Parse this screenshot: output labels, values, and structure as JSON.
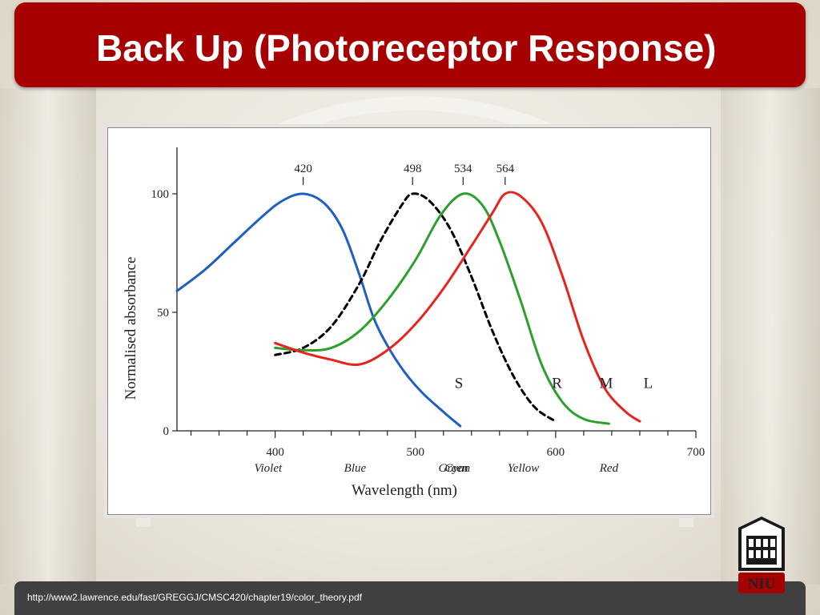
{
  "slide": {
    "title": "Back Up (Photoreceptor Response)",
    "footer_url": "http://www2.lawrence.edu/fast/GREGGJ/CMSC420/chapter19/color_theory.pdf",
    "logo_text": "NIU",
    "colors": {
      "title_bar": "#a60000",
      "footer_bar": "#404040"
    }
  },
  "chart_data": {
    "type": "line",
    "title": "",
    "xlabel": "Wavelength (nm)",
    "ylabel": "Normalised absorbance",
    "xlim": [
      330,
      700
    ],
    "ylim": [
      0,
      100
    ],
    "x_ticks": [
      400,
      500,
      600,
      700
    ],
    "y_ticks": [
      0,
      50,
      100
    ],
    "color_bands": [
      {
        "label": "Violet",
        "x": 395
      },
      {
        "label": "Blue",
        "x": 457
      },
      {
        "label": "Cyan",
        "x": 530
      },
      {
        "label": "Green",
        "x": 527
      },
      {
        "label": "Yellow",
        "x": 577
      },
      {
        "label": "Red",
        "x": 638
      }
    ],
    "peak_labels": [
      420,
      498,
      534,
      564
    ],
    "series": [
      {
        "name": "S",
        "color": "#1f5fbf",
        "dashed": false,
        "points": [
          [
            330,
            59
          ],
          [
            350,
            68
          ],
          [
            370,
            79
          ],
          [
            390,
            90
          ],
          [
            405,
            97
          ],
          [
            420,
            100
          ],
          [
            435,
            96
          ],
          [
            448,
            85
          ],
          [
            460,
            66
          ],
          [
            470,
            48
          ],
          [
            480,
            36
          ],
          [
            492,
            25
          ],
          [
            505,
            16
          ],
          [
            520,
            8
          ],
          [
            532,
            2
          ]
        ]
      },
      {
        "name": "R",
        "color": "#000000",
        "dashed": true,
        "points": [
          [
            400,
            32
          ],
          [
            420,
            35
          ],
          [
            440,
            44
          ],
          [
            460,
            62
          ],
          [
            475,
            80
          ],
          [
            490,
            95
          ],
          [
            498,
            100
          ],
          [
            510,
            97
          ],
          [
            525,
            85
          ],
          [
            540,
            65
          ],
          [
            555,
            42
          ],
          [
            570,
            23
          ],
          [
            585,
            10
          ],
          [
            600,
            4
          ]
        ]
      },
      {
        "name": "M",
        "color": "#2ca02c",
        "dashed": false,
        "points": [
          [
            400,
            35
          ],
          [
            420,
            34
          ],
          [
            440,
            35
          ],
          [
            460,
            42
          ],
          [
            480,
            55
          ],
          [
            500,
            72
          ],
          [
            518,
            91
          ],
          [
            534,
            100
          ],
          [
            548,
            95
          ],
          [
            560,
            80
          ],
          [
            575,
            55
          ],
          [
            590,
            28
          ],
          [
            605,
            12
          ],
          [
            620,
            5
          ],
          [
            638,
            3
          ]
        ]
      },
      {
        "name": "L",
        "color": "#e8231c",
        "dashed": false,
        "points": [
          [
            400,
            37
          ],
          [
            420,
            33
          ],
          [
            440,
            30
          ],
          [
            460,
            28
          ],
          [
            480,
            34
          ],
          [
            500,
            45
          ],
          [
            520,
            60
          ],
          [
            540,
            78
          ],
          [
            555,
            92
          ],
          [
            564,
            100
          ],
          [
            575,
            99
          ],
          [
            590,
            88
          ],
          [
            605,
            65
          ],
          [
            620,
            38
          ],
          [
            635,
            18
          ],
          [
            650,
            8
          ],
          [
            660,
            4
          ]
        ]
      }
    ]
  }
}
